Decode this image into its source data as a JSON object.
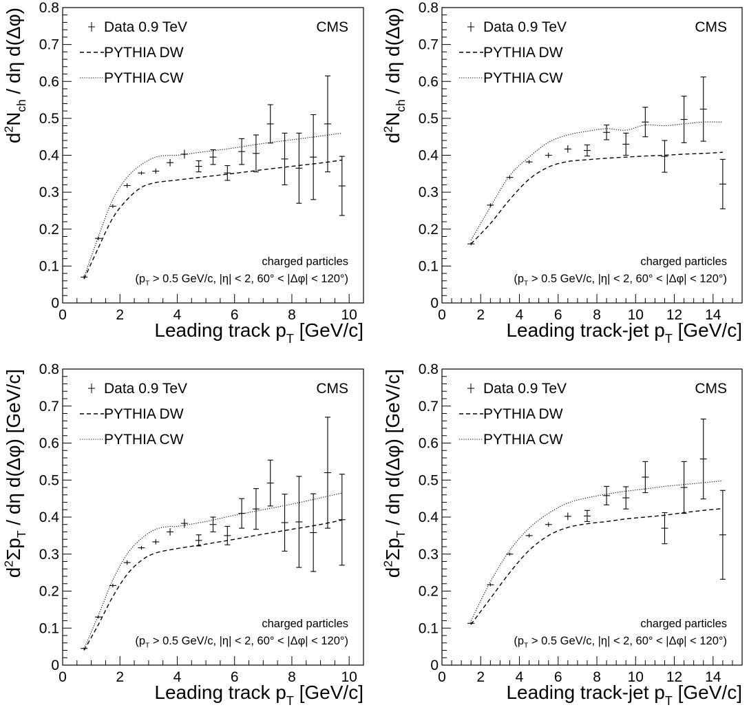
{
  "chart_data": [
    {
      "type": "scatter",
      "xlabel": "Leading track p",
      "xlabel_sub": "T",
      "xlabel_unit": " [GeV/c]",
      "ylabel": "d²N_ch / dη d(Δφ)",
      "xlim": [
        0,
        10.5
      ],
      "ylim": [
        0,
        0.8
      ],
      "xticks": [
        0,
        2,
        4,
        6,
        8,
        10
      ],
      "yticks": [
        0,
        0.1,
        0.2,
        0.3,
        0.4,
        0.5,
        0.6,
        0.7,
        0.8
      ],
      "experiment": "CMS",
      "annotation_line1": "charged particles",
      "annotation_line2": "(p_T > 0.5 GeV/c, |η| < 2, 60° < |Δφ| < 120°)",
      "legend": [
        {
          "label": "Data 0.9 TeV",
          "style": "data"
        },
        {
          "label": "PYTHIA DW",
          "style": "dashed"
        },
        {
          "label": "PYTHIA CW",
          "style": "dotted"
        }
      ],
      "series": [
        {
          "name": "Data 0.9 TeV",
          "style": "data",
          "x": [
            0.75,
            1.25,
            1.75,
            2.25,
            2.75,
            3.25,
            3.75,
            4.25,
            4.75,
            5.25,
            5.75,
            6.25,
            6.75,
            7.25,
            7.75,
            8.25,
            8.75,
            9.25,
            9.75
          ],
          "y": [
            0.07,
            0.175,
            0.262,
            0.318,
            0.352,
            0.357,
            0.38,
            0.403,
            0.37,
            0.395,
            0.352,
            0.41,
            0.405,
            0.485,
            0.39,
            0.365,
            0.395,
            0.485,
            0.317
          ],
          "err": [
            0.005,
            0.005,
            0.005,
            0.006,
            0.005,
            0.007,
            0.01,
            0.012,
            0.015,
            0.02,
            0.02,
            0.035,
            0.05,
            0.052,
            0.07,
            0.095,
            0.115,
            0.13,
            0.08
          ]
        },
        {
          "name": "PYTHIA DW",
          "style": "dashed",
          "x": [
            0.75,
            1.25,
            1.75,
            2.25,
            2.75,
            3.25,
            4,
            5,
            6,
            7,
            8,
            9,
            9.75
          ],
          "y": [
            0.065,
            0.15,
            0.23,
            0.28,
            0.313,
            0.326,
            0.333,
            0.342,
            0.351,
            0.361,
            0.37,
            0.379,
            0.387
          ]
        },
        {
          "name": "PYTHIA CW",
          "style": "dotted",
          "x": [
            0.75,
            1.25,
            1.75,
            2.25,
            2.75,
            3.25,
            3.75,
            4,
            5,
            6,
            7,
            8,
            9,
            9.75
          ],
          "y": [
            0.07,
            0.18,
            0.28,
            0.34,
            0.375,
            0.395,
            0.4,
            0.4,
            0.41,
            0.42,
            0.432,
            0.442,
            0.452,
            0.46
          ]
        }
      ]
    },
    {
      "type": "scatter",
      "xlabel": "Leading track-jet p",
      "xlabel_sub": "T",
      "xlabel_unit": " [GeV/c]",
      "ylabel": "d²N_ch / dη d(Δφ)",
      "xlim": [
        0,
        15.5
      ],
      "ylim": [
        0,
        0.8
      ],
      "xticks": [
        0,
        2,
        4,
        6,
        8,
        10,
        12,
        14
      ],
      "yticks": [
        0,
        0.1,
        0.2,
        0.3,
        0.4,
        0.5,
        0.6,
        0.7,
        0.8
      ],
      "experiment": "CMS",
      "annotation_line1": "charged particles",
      "annotation_line2": "(p_T > 0.5 GeV/c, |η| < 2, 60° < |Δφ| < 120°)",
      "legend": [
        {
          "label": "Data 0.9 TeV",
          "style": "data"
        },
        {
          "label": "PYTHIA DW",
          "style": "dashed"
        },
        {
          "label": "PYTHIA CW",
          "style": "dotted"
        }
      ],
      "series": [
        {
          "name": "Data 0.9 TeV",
          "style": "data",
          "x": [
            1.5,
            2.5,
            3.5,
            4.5,
            5.5,
            6.5,
            7.5,
            8.5,
            9.5,
            10.5,
            11.5,
            12.5,
            13.5,
            14.5
          ],
          "y": [
            0.16,
            0.265,
            0.34,
            0.382,
            0.4,
            0.417,
            0.413,
            0.462,
            0.43,
            0.49,
            0.397,
            0.497,
            0.525,
            0.322
          ],
          "err": [
            0.004,
            0.005,
            0.005,
            0.005,
            0.007,
            0.01,
            0.015,
            0.02,
            0.03,
            0.04,
            0.043,
            0.063,
            0.087,
            0.067
          ]
        },
        {
          "name": "PYTHIA DW",
          "style": "dashed",
          "x": [
            1.5,
            2.5,
            3.5,
            4.5,
            5.5,
            6.5,
            7.5,
            8.5,
            9.5,
            10.5,
            11.5,
            12.5,
            13.5,
            14.5
          ],
          "y": [
            0.16,
            0.215,
            0.28,
            0.335,
            0.368,
            0.383,
            0.388,
            0.392,
            0.395,
            0.398,
            0.4,
            0.403,
            0.405,
            0.408
          ]
        },
        {
          "name": "PYTHIA CW",
          "style": "dotted",
          "x": [
            1.5,
            2.5,
            3.5,
            4.5,
            5.5,
            6.5,
            7.5,
            8.5,
            9.5,
            10.5,
            11.5,
            12.5,
            13.5,
            14.5
          ],
          "y": [
            0.17,
            0.26,
            0.345,
            0.395,
            0.435,
            0.455,
            0.465,
            0.472,
            0.468,
            0.482,
            0.48,
            0.485,
            0.49,
            0.49
          ]
        }
      ]
    },
    {
      "type": "scatter",
      "xlabel": "Leading track p",
      "xlabel_sub": "T",
      "xlabel_unit": " [GeV/c]",
      "ylabel": "d²Σp_T / dη d(Δφ) [GeV/c]",
      "xlim": [
        0,
        10.5
      ],
      "ylim": [
        0,
        0.8
      ],
      "xticks": [
        0,
        2,
        4,
        6,
        8,
        10
      ],
      "yticks": [
        0,
        0.1,
        0.2,
        0.3,
        0.4,
        0.5,
        0.6,
        0.7,
        0.8
      ],
      "experiment": "CMS",
      "annotation_line1": "charged particles",
      "annotation_line2": "(p_T > 0.5 GeV/c, |η| < 2, 60° < |Δφ| < 120°)",
      "legend": [
        {
          "label": "Data 0.9 TeV",
          "style": "data"
        },
        {
          "label": "PYTHIA DW",
          "style": "dashed"
        },
        {
          "label": "PYTHIA CW",
          "style": "dotted"
        }
      ],
      "series": [
        {
          "name": "Data 0.9 TeV",
          "style": "data",
          "x": [
            0.75,
            1.25,
            1.75,
            2.25,
            2.75,
            3.25,
            3.75,
            4.25,
            4.75,
            5.25,
            5.75,
            6.25,
            6.75,
            7.25,
            7.75,
            8.25,
            8.75,
            9.25,
            9.75
          ],
          "y": [
            0.045,
            0.13,
            0.215,
            0.277,
            0.317,
            0.333,
            0.36,
            0.383,
            0.337,
            0.38,
            0.35,
            0.41,
            0.422,
            0.492,
            0.385,
            0.387,
            0.358,
            0.52,
            0.393
          ],
          "err": [
            0.003,
            0.004,
            0.005,
            0.006,
            0.005,
            0.007,
            0.01,
            0.012,
            0.015,
            0.02,
            0.025,
            0.04,
            0.055,
            0.062,
            0.077,
            0.123,
            0.105,
            0.15,
            0.123
          ]
        },
        {
          "name": "PYTHIA DW",
          "style": "dashed",
          "x": [
            0.75,
            1.25,
            1.75,
            2.25,
            2.75,
            3.25,
            4,
            5,
            6,
            7,
            8,
            9,
            9.75
          ],
          "y": [
            0.04,
            0.11,
            0.185,
            0.245,
            0.283,
            0.303,
            0.315,
            0.327,
            0.34,
            0.354,
            0.367,
            0.38,
            0.392
          ]
        },
        {
          "name": "PYTHIA CW",
          "style": "dotted",
          "x": [
            0.75,
            1.25,
            1.75,
            2.25,
            2.75,
            3.25,
            3.75,
            4,
            5,
            6,
            7,
            8,
            9,
            9.75
          ],
          "y": [
            0.045,
            0.135,
            0.23,
            0.3,
            0.342,
            0.367,
            0.375,
            0.375,
            0.388,
            0.405,
            0.42,
            0.435,
            0.452,
            0.465
          ]
        }
      ]
    },
    {
      "type": "scatter",
      "xlabel": "Leading track-jet p",
      "xlabel_sub": "T",
      "xlabel_unit": " [GeV/c]",
      "ylabel": "d²Σp_T / dη d(Δφ) [GeV/c]",
      "xlim": [
        0,
        15.5
      ],
      "ylim": [
        0,
        0.8
      ],
      "xticks": [
        0,
        2,
        4,
        6,
        8,
        10,
        12,
        14
      ],
      "yticks": [
        0,
        0.1,
        0.2,
        0.3,
        0.4,
        0.5,
        0.6,
        0.7,
        0.8
      ],
      "experiment": "CMS",
      "annotation_line1": "charged particles",
      "annotation_line2": "(p_T > 0.5 GeV/c, |η| < 2, 60° < |Δφ| < 120°)",
      "legend": [
        {
          "label": "Data 0.9 TeV",
          "style": "data"
        },
        {
          "label": "PYTHIA DW",
          "style": "dashed"
        },
        {
          "label": "PYTHIA CW",
          "style": "dotted"
        }
      ],
      "series": [
        {
          "name": "Data 0.9 TeV",
          "style": "data",
          "x": [
            1.5,
            2.5,
            3.5,
            4.5,
            5.5,
            6.5,
            7.5,
            8.5,
            9.5,
            10.5,
            11.5,
            12.5,
            13.5,
            14.5
          ],
          "y": [
            0.113,
            0.217,
            0.3,
            0.35,
            0.38,
            0.402,
            0.403,
            0.458,
            0.452,
            0.508,
            0.37,
            0.48,
            0.557,
            0.352
          ],
          "err": [
            0.004,
            0.004,
            0.004,
            0.005,
            0.006,
            0.01,
            0.015,
            0.025,
            0.03,
            0.042,
            0.042,
            0.07,
            0.108,
            0.12
          ]
        },
        {
          "name": "PYTHIA DW",
          "style": "dashed",
          "x": [
            1.5,
            2.5,
            3.5,
            4.5,
            5.5,
            6.5,
            7.5,
            8.5,
            9.5,
            10.5,
            11.5,
            12.5,
            13.5,
            14.5
          ],
          "y": [
            0.11,
            0.18,
            0.25,
            0.31,
            0.35,
            0.372,
            0.382,
            0.388,
            0.395,
            0.4,
            0.405,
            0.412,
            0.418,
            0.423
          ]
        },
        {
          "name": "PYTHIA CW",
          "style": "dotted",
          "x": [
            1.5,
            2.5,
            3.5,
            4.5,
            5.5,
            6.5,
            7.5,
            8.5,
            9.5,
            10.5,
            11.5,
            12.5,
            13.5,
            14.5
          ],
          "y": [
            0.12,
            0.225,
            0.31,
            0.37,
            0.41,
            0.438,
            0.452,
            0.462,
            0.47,
            0.476,
            0.483,
            0.488,
            0.493,
            0.498
          ]
        }
      ]
    }
  ]
}
